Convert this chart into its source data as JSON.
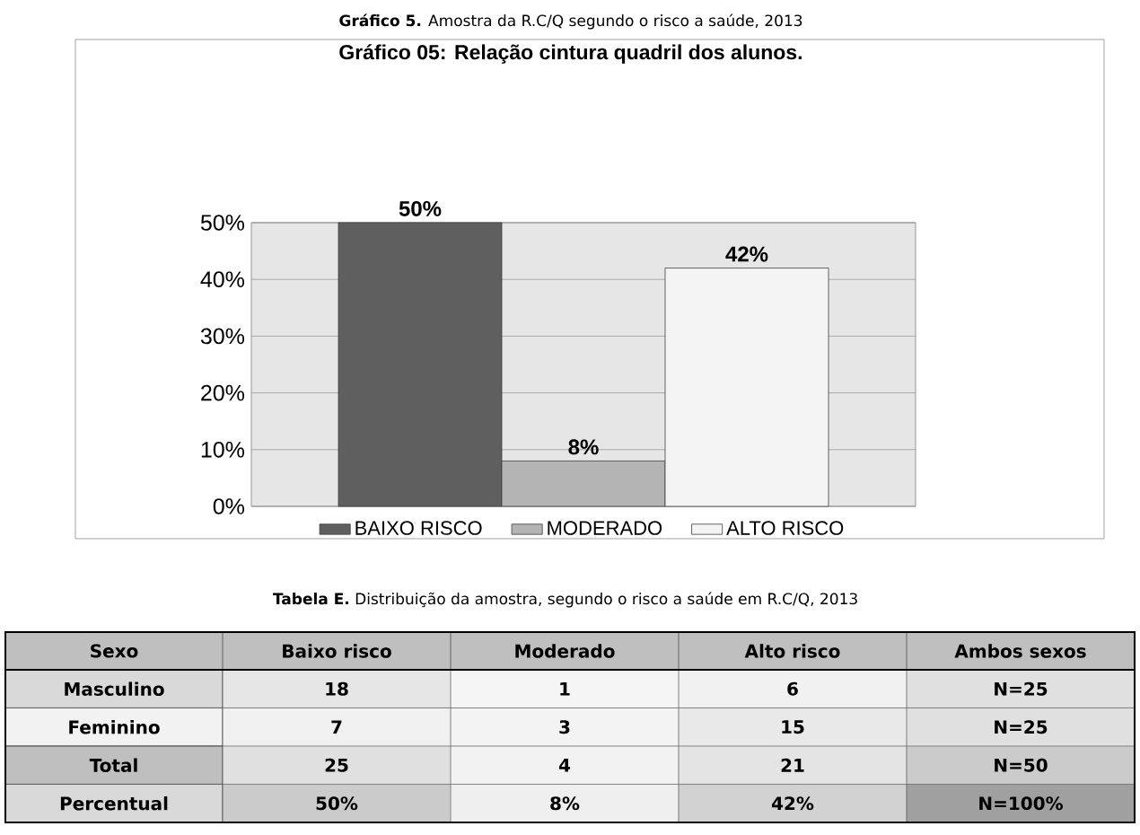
{
  "chart_data": [
    {
      "type": "bar",
      "title": "Gráfico 05: Relação cintura quadril dos alunos.",
      "annotations": [
        "**Gráfico 5.** Amostra da R.C/Q segundo o risco a saúde, 2013"
      ],
      "categories": [
        null
      ],
      "series": [
        {
          "name": "BAIXO RISCO",
          "color": "#5f5f5f",
          "values": [
            50
          ],
          "value_labels": [
            "50%"
          ]
        },
        {
          "name": "MODERADO",
          "color": "#b4b4b4",
          "values": [
            8
          ],
          "value_labels": [
            "8%"
          ]
        },
        {
          "name": "ALTO RISCO",
          "color": "#f4f4f4",
          "values": [
            42
          ],
          "value_labels": [
            "42%"
          ]
        }
      ],
      "ylim": [
        0,
        50
      ],
      "yticks": [
        {
          "value": 0,
          "label": "0%"
        },
        {
          "value": 10,
          "label": "10%"
        },
        {
          "value": 20,
          "label": "20%"
        },
        {
          "value": 30,
          "label": "30%"
        },
        {
          "value": 40,
          "label": "40%"
        },
        {
          "value": 50,
          "label": "50%"
        }
      ],
      "grid": "y",
      "legend": "bottom"
    },
    {
      "type": "heatmap",
      "title": "**Tabela E.** Distribuição da amostra, segundo o risco a saúde em R.C/Q, 2013",
      "ylabel": "Sexo",
      "categories": [
        "Baixo risco",
        "Moderado",
        "Alto risco",
        "Ambos sexos"
      ],
      "y_categories": [
        "Masculino",
        "Feminino",
        "Total",
        "Percentual"
      ],
      "cells": [
        [
          18,
          1,
          6,
          25
        ],
        [
          7,
          3,
          15,
          25
        ],
        [
          25,
          4,
          21,
          50
        ],
        [
          50,
          8,
          42,
          100
        ]
      ],
      "cell_labels": [
        [
          "18",
          "1",
          "6",
          "N=25"
        ],
        [
          "7",
          "3",
          "15",
          "N=25"
        ],
        [
          "25",
          "4",
          "21",
          "N=50"
        ],
        [
          "50%",
          "8%",
          "42%",
          "N=100%"
        ]
      ]
    }
  ]
}
